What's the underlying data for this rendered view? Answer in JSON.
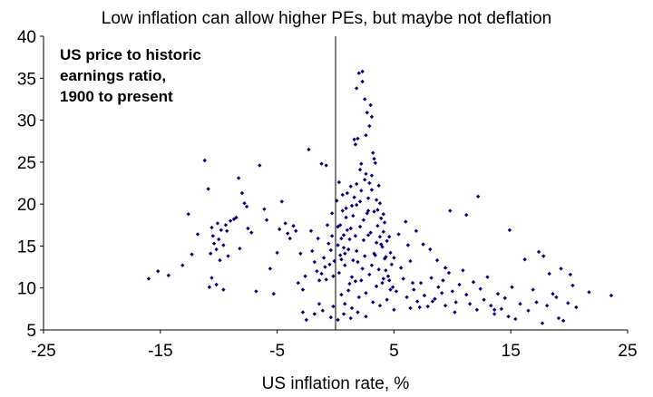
{
  "chart_data": {
    "type": "scatter",
    "title": "Low inflation can allow higher PEs, but maybe not deflation",
    "xlabel": "US inflation rate, %",
    "ylabel": "",
    "xlim": [
      -25,
      25
    ],
    "ylim": [
      5,
      40
    ],
    "x_ticks": [
      -25,
      -15,
      -5,
      5,
      15,
      25
    ],
    "y_ticks": [
      5,
      10,
      15,
      20,
      25,
      30,
      35,
      40
    ],
    "x_tick_labels": [
      "-25",
      "-15",
      "-5",
      "5",
      "15",
      "25"
    ],
    "y_tick_labels": [
      "5",
      "10",
      "15",
      "20",
      "25",
      "30",
      "35",
      "40"
    ],
    "annotation": [
      "US price to historic",
      "earnings ratio,",
      "1900 to present"
    ],
    "grid": false,
    "marker_color": "#000080",
    "points": [
      [
        -16,
        11.1
      ],
      [
        -15.2,
        12
      ],
      [
        -14.3,
        11.5
      ],
      [
        -13.1,
        12.7
      ],
      [
        -12.6,
        18.8
      ],
      [
        -12.3,
        14
      ],
      [
        -11.8,
        16.4
      ],
      [
        -11.2,
        25.2
      ],
      [
        -10.9,
        21.8
      ],
      [
        -10.6,
        17.2
      ],
      [
        -10.4,
        15.3
      ],
      [
        -10.2,
        14.6
      ],
      [
        -10,
        15.8
      ],
      [
        -9.8,
        16.9
      ],
      [
        -9.6,
        15.1
      ],
      [
        -9.4,
        17.5
      ],
      [
        -9.2,
        13.8
      ],
      [
        -10.8,
        10.1
      ],
      [
        -10.6,
        11.2
      ],
      [
        -10.2,
        10.4
      ],
      [
        -9.6,
        9.8
      ],
      [
        -10.5,
        16.2
      ],
      [
        -10.7,
        14.1
      ],
      [
        -10.1,
        17.7
      ],
      [
        -9.9,
        13.3
      ],
      [
        -9.3,
        16.8
      ],
      [
        -9,
        18
      ],
      [
        -8.7,
        18.2
      ],
      [
        -8.5,
        18.4
      ],
      [
        -8.3,
        23.1
      ],
      [
        -8,
        21.3
      ],
      [
        -7.8,
        20.1
      ],
      [
        -7.6,
        19.7
      ],
      [
        -8.2,
        14.7
      ],
      [
        -7.5,
        17.1
      ],
      [
        -7.2,
        16.6
      ],
      [
        -6.8,
        9.6
      ],
      [
        -6.5,
        24.6
      ],
      [
        -6.1,
        19.4
      ],
      [
        -5.9,
        18.1
      ],
      [
        -5.6,
        12.3
      ],
      [
        -5.3,
        9.3
      ],
      [
        -5,
        14.2
      ],
      [
        -4.8,
        17
      ],
      [
        -4.6,
        20.3
      ],
      [
        -4.3,
        17.7
      ],
      [
        -4.1,
        16.5
      ],
      [
        -3.9,
        15.9
      ],
      [
        -3.6,
        17.4
      ],
      [
        -3.4,
        16.8
      ],
      [
        -3.2,
        10.6
      ],
      [
        -3,
        14.1
      ],
      [
        -2.8,
        9.8
      ],
      [
        -2.6,
        11.4
      ],
      [
        -2.3,
        26.5
      ],
      [
        -2.1,
        16.8
      ],
      [
        -2,
        14.4
      ],
      [
        -1.8,
        13.1
      ],
      [
        -1.6,
        12
      ],
      [
        -1.4,
        10.9
      ],
      [
        -1.2,
        11.7
      ],
      [
        -1,
        13.6
      ],
      [
        -0.9,
        12.5
      ],
      [
        -0.8,
        11
      ],
      [
        -0.6,
        15.3
      ],
      [
        -0.5,
        12.8
      ],
      [
        -0.4,
        14.5
      ],
      [
        -0.3,
        16.2
      ],
      [
        -0.2,
        11.4
      ],
      [
        -0.1,
        13.2
      ],
      [
        -1.2,
        24.8
      ],
      [
        -0.8,
        24.6
      ],
      [
        -2.5,
        6.2
      ],
      [
        -1.8,
        6.9
      ],
      [
        -1.1,
        7.3
      ],
      [
        -0.4,
        6.5
      ],
      [
        -0.2,
        7.8
      ],
      [
        -1.5,
        15.9
      ],
      [
        -0.7,
        17.5
      ],
      [
        -0.3,
        18.9
      ],
      [
        -2.8,
        7.1
      ],
      [
        -1.4,
        8.1
      ],
      [
        0.1,
        20.4
      ],
      [
        0.2,
        15.1
      ],
      [
        0.3,
        11.8
      ],
      [
        0.4,
        17.5
      ],
      [
        0.5,
        13.4
      ],
      [
        0.6,
        19.2
      ],
      [
        0.7,
        16.3
      ],
      [
        0.8,
        12.7
      ],
      [
        0.9,
        18.4
      ],
      [
        1,
        21.3
      ],
      [
        1.1,
        14.6
      ],
      [
        1.2,
        10.5
      ],
      [
        1.3,
        17.1
      ],
      [
        1.4,
        19.8
      ],
      [
        1.5,
        13.3
      ],
      [
        1.6,
        27.7
      ],
      [
        1.7,
        16.2
      ],
      [
        1.8,
        22.4
      ],
      [
        1.9,
        27.8
      ],
      [
        2,
        35.6
      ],
      [
        2.1,
        20.3
      ],
      [
        2.2,
        24.8
      ],
      [
        2.3,
        35.8
      ],
      [
        2.4,
        18.1
      ],
      [
        2.5,
        32.5
      ],
      [
        2.6,
        23.6
      ],
      [
        2.7,
        30.9
      ],
      [
        2.8,
        19.2
      ],
      [
        2.9,
        29.3
      ],
      [
        3,
        31.8
      ],
      [
        3.1,
        21.7
      ],
      [
        3.2,
        26.1
      ],
      [
        3.3,
        25.4
      ],
      [
        3.4,
        24.9
      ],
      [
        3.5,
        20.5
      ],
      [
        3.6,
        17.4
      ],
      [
        3.7,
        22.2
      ],
      [
        3.8,
        16.1
      ],
      [
        3.9,
        18.3
      ],
      [
        4,
        14.9
      ],
      [
        4.1,
        16.7
      ],
      [
        4.2,
        13.5
      ],
      [
        4.3,
        12.1
      ],
      [
        4.4,
        15.6
      ],
      [
        4.5,
        11.4
      ],
      [
        4.6,
        10.9
      ],
      [
        4.7,
        14.2
      ],
      [
        4.8,
        12.8
      ],
      [
        4.9,
        10.1
      ],
      [
        5,
        13.6
      ],
      [
        5.2,
        9.6
      ],
      [
        5.4,
        16.4
      ],
      [
        5.6,
        12.4
      ],
      [
        5.8,
        11.1
      ],
      [
        6,
        17.9
      ],
      [
        6.2,
        15.1
      ],
      [
        6.4,
        13.2
      ],
      [
        1.8,
        33.8
      ],
      [
        2.3,
        34.6
      ],
      [
        2.6,
        28.2
      ],
      [
        1.7,
        27.1
      ],
      [
        3.1,
        30.4
      ],
      [
        0.5,
        9.2
      ],
      [
        0.8,
        8.1
      ],
      [
        1.1,
        9.7
      ],
      [
        1.4,
        7.6
      ],
      [
        1.7,
        10.8
      ],
      [
        2,
        8.9
      ],
      [
        2.3,
        12.3
      ],
      [
        2.6,
        9.4
      ],
      [
        2.9,
        11.6
      ],
      [
        3.2,
        8.3
      ],
      [
        3.5,
        10.2
      ],
      [
        3.8,
        7.9
      ],
      [
        4.1,
        11.1
      ],
      [
        4.4,
        8.6
      ],
      [
        4.7,
        9.8
      ],
      [
        5,
        7.4
      ],
      [
        1.2,
        15.8
      ],
      [
        1.5,
        18.6
      ],
      [
        1.8,
        14.4
      ],
      [
        2.1,
        17.3
      ],
      [
        2.4,
        15.7
      ],
      [
        2.7,
        18.9
      ],
      [
        3,
        16.6
      ],
      [
        3.3,
        14.1
      ],
      [
        3.6,
        19.3
      ],
      [
        3.9,
        15.2
      ],
      [
        4.2,
        17.8
      ],
      [
        2.2,
        21.6
      ],
      [
        2.5,
        22.9
      ],
      [
        2.8,
        20.7
      ],
      [
        3.1,
        23.4
      ],
      [
        1.3,
        22.1
      ],
      [
        0.9,
        19.5
      ],
      [
        1.6,
        20.8
      ],
      [
        0.3,
        22.6
      ],
      [
        0.6,
        21.1
      ],
      [
        1,
        16.9
      ],
      [
        1.9,
        13.1
      ],
      [
        2.2,
        10.9
      ],
      [
        2.5,
        13.8
      ],
      [
        2.8,
        16.3
      ],
      [
        3.1,
        12.7
      ],
      [
        3.4,
        13.9
      ],
      [
        3.7,
        12.2
      ],
      [
        4,
        10.6
      ],
      [
        4.3,
        13.7
      ],
      [
        4.6,
        16.1
      ],
      [
        0.2,
        6.2
      ],
      [
        0.7,
        6.9
      ],
      [
        1.3,
        6.4
      ],
      [
        1.9,
        7.1
      ],
      [
        2.6,
        6.6
      ],
      [
        0.4,
        13.9
      ],
      [
        0.7,
        14.8
      ],
      [
        1.4,
        11.3
      ],
      [
        1.8,
        19.9
      ],
      [
        2.1,
        24.1
      ],
      [
        2.9,
        22.5
      ],
      [
        3.3,
        19.1
      ],
      [
        3.5,
        15.4
      ],
      [
        3.8,
        20.1
      ],
      [
        4.1,
        18.8
      ],
      [
        0.2,
        17.3
      ],
      [
        0.5,
        15.9
      ],
      [
        0.8,
        14.1
      ],
      [
        6.1,
        8.9
      ],
      [
        6.4,
        7.6
      ],
      [
        6.7,
        9.8
      ],
      [
        7,
        8.4
      ],
      [
        7.3,
        10.6
      ],
      [
        7.6,
        9.1
      ],
      [
        7.9,
        7.8
      ],
      [
        8.2,
        11.2
      ],
      [
        8.5,
        8.7
      ],
      [
        8.8,
        10.1
      ],
      [
        9.1,
        9.4
      ],
      [
        9.4,
        7.9
      ],
      [
        9.7,
        11.8
      ],
      [
        10,
        9.6
      ],
      [
        10.3,
        8.3
      ],
      [
        10.6,
        10.4
      ],
      [
        10.9,
        12.1
      ],
      [
        11.2,
        9.2
      ],
      [
        11.5,
        8.1
      ],
      [
        11.8,
        10.7
      ],
      [
        12.1,
        7.4
      ],
      [
        12.4,
        9.9
      ],
      [
        12.7,
        8.6
      ],
      [
        13,
        11.3
      ],
      [
        13.3,
        7.9
      ],
      [
        13.6,
        6.9
      ],
      [
        13.9,
        9.3
      ],
      [
        14.2,
        7.5
      ],
      [
        14.5,
        8.8
      ],
      [
        14.8,
        6.6
      ],
      [
        15.1,
        10.1
      ],
      [
        6.9,
        16.8
      ],
      [
        7.5,
        15.2
      ],
      [
        8.1,
        14.6
      ],
      [
        8.7,
        13.3
      ],
      [
        9.4,
        12.4
      ],
      [
        9.8,
        19.2
      ],
      [
        11.2,
        18.7
      ],
      [
        12.2,
        20.9
      ],
      [
        14.9,
        16.9
      ],
      [
        16.2,
        13.4
      ],
      [
        16.9,
        9.8
      ],
      [
        17.4,
        14.3
      ],
      [
        17.8,
        13.8
      ],
      [
        18.3,
        11.7
      ],
      [
        18.6,
        9.3
      ],
      [
        19.1,
        6.4
      ],
      [
        19.5,
        6.1
      ],
      [
        19.9,
        8.2
      ],
      [
        20.3,
        10.3
      ],
      [
        20.6,
        7.7
      ],
      [
        21.7,
        9.5
      ],
      [
        23.6,
        9.1
      ],
      [
        17.2,
        8.3
      ],
      [
        18.1,
        7.9
      ],
      [
        18.9,
        8.9
      ],
      [
        16.5,
        7.3
      ],
      [
        15.8,
        8.1
      ],
      [
        19.3,
        12.3
      ],
      [
        20.1,
        11.6
      ],
      [
        17.7,
        5.8
      ],
      [
        13.6,
        7.4
      ],
      [
        15.4,
        6.3
      ],
      [
        10.2,
        7.1
      ],
      [
        9.2,
        10.9
      ],
      [
        8.3,
        8.4
      ],
      [
        7.2,
        7.7
      ],
      [
        6.6,
        10.6
      ]
    ]
  }
}
